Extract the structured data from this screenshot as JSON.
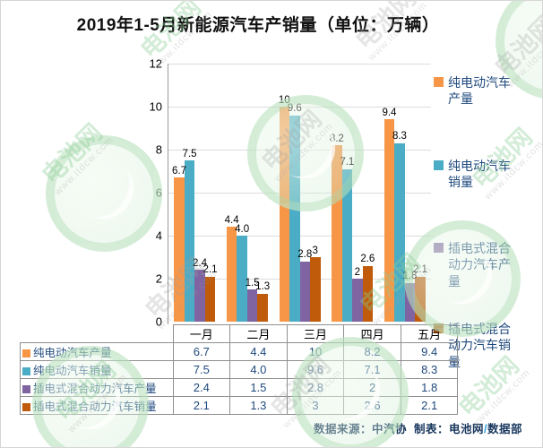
{
  "title": "2019年1-5月新能源汽车产销量（单位：万辆）",
  "chart_data": {
    "type": "bar",
    "title": "2019年1-5月新能源汽车产销量",
    "unit": "万辆",
    "categories": [
      "一月",
      "二月",
      "三月",
      "四月",
      "五月"
    ],
    "series": [
      {
        "key": "bev-production",
        "name": "纯电动汽车产量",
        "color": "#F79646",
        "values": [
          6.7,
          4.4,
          10,
          8.2,
          9.4
        ],
        "labels": [
          "6.7",
          "4.4",
          "10",
          "8.2",
          "9.4"
        ]
      },
      {
        "key": "bev-sales",
        "name": "纯电动汽车销量",
        "color": "#4BACC6",
        "values": [
          7.5,
          4.0,
          9.6,
          7.1,
          8.3
        ],
        "labels": [
          "7.5",
          "4.0",
          "9.6",
          "7.1",
          "8.3"
        ]
      },
      {
        "key": "phev-production",
        "name": "插电式混合动力汽车产量",
        "color": "#8064A2",
        "values": [
          2.4,
          1.5,
          2.8,
          2,
          1.8
        ],
        "labels": [
          "2.4",
          "1.5",
          "2.8",
          "2",
          "1.8"
        ]
      },
      {
        "key": "phev-sales",
        "name": "插电式混合动力汽车销量",
        "color": "#BF5B0B",
        "values": [
          2.1,
          1.3,
          3,
          2.6,
          2.1
        ],
        "labels": [
          "2.1",
          "1.3",
          "3",
          "2.6",
          "2.1"
        ]
      }
    ],
    "y_axis": {
      "min": 0,
      "max": 12,
      "step": 2,
      "tick_labels": [
        "0",
        "2",
        "4",
        "6",
        "8",
        "10",
        "12"
      ]
    },
    "legend_position": "right",
    "grid": true,
    "has_data_table": true
  },
  "footer": {
    "source": "数据来源：中汽协",
    "made_by": "制表：电池网",
    "slash": "/",
    "department": "数据部"
  },
  "watermark": {
    "brand": "电池网",
    "url": "www.itdcw.com"
  }
}
